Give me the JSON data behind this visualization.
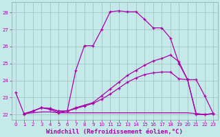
{
  "bg_color": "#c5e8e8",
  "line_color": "#aa00aa",
  "grid_color": "#9bbfbf",
  "x_label": "Windchill (Refroidissement éolien,°C)",
  "ylim": [
    21.7,
    28.6
  ],
  "xlim": [
    -0.5,
    23.5
  ],
  "yticks": [
    22,
    23,
    24,
    25,
    26,
    27,
    28
  ],
  "xticks": [
    0,
    1,
    2,
    3,
    4,
    5,
    6,
    7,
    8,
    9,
    10,
    11,
    12,
    13,
    14,
    15,
    16,
    17,
    18,
    19,
    20,
    21,
    22,
    23
  ],
  "curve1_x": [
    0,
    1,
    2,
    3,
    4,
    5,
    6,
    7,
    8,
    9,
    10,
    11,
    12,
    13,
    14,
    15,
    16,
    17,
    18,
    19,
    20,
    21,
    22,
    23
  ],
  "curve1_y": [
    23.3,
    22.0,
    22.2,
    22.4,
    22.3,
    22.1,
    22.2,
    24.6,
    26.05,
    26.05,
    27.0,
    28.05,
    28.1,
    28.05,
    28.05,
    27.6,
    27.1,
    27.1,
    26.5,
    25.0,
    24.05,
    24.05,
    23.1,
    22.05
  ],
  "curve2_x": [
    1,
    2,
    3,
    4,
    5,
    6,
    7,
    8,
    9,
    10,
    11,
    12,
    13,
    14,
    15,
    16,
    17,
    18,
    19,
    20,
    21,
    22,
    23
  ],
  "curve2_y": [
    22.05,
    22.2,
    22.4,
    22.35,
    22.2,
    22.2,
    22.4,
    22.55,
    22.7,
    23.1,
    23.5,
    23.9,
    24.3,
    24.6,
    24.9,
    25.15,
    25.3,
    25.5,
    25.1,
    24.05,
    22.0,
    22.0,
    22.05
  ],
  "curve3_x": [
    1,
    2,
    3,
    4,
    5,
    6,
    7,
    8,
    9,
    10,
    11,
    12,
    13,
    14,
    15,
    16,
    17,
    18,
    19,
    20,
    21,
    22,
    23
  ],
  "curve3_y": [
    22.05,
    22.2,
    22.4,
    22.35,
    22.2,
    22.2,
    22.35,
    22.5,
    22.65,
    22.9,
    23.2,
    23.55,
    23.9,
    24.15,
    24.35,
    24.45,
    24.5,
    24.5,
    24.1,
    24.05,
    22.05,
    22.0,
    22.05
  ],
  "curve4_x": [
    1,
    2,
    3,
    4,
    5,
    6,
    7,
    8,
    9,
    10,
    11,
    12,
    13,
    14,
    15,
    16,
    17,
    18,
    19,
    20,
    21,
    22,
    23
  ],
  "curve4_y": [
    22.05,
    22.1,
    22.15,
    22.15,
    22.1,
    22.1,
    22.1,
    22.1,
    22.1,
    22.1,
    22.1,
    22.1,
    22.1,
    22.1,
    22.1,
    22.1,
    22.1,
    22.1,
    22.1,
    22.1,
    22.05,
    22.0,
    22.05
  ],
  "tick_fontsize": 5,
  "xlabel_fontsize": 6.5
}
